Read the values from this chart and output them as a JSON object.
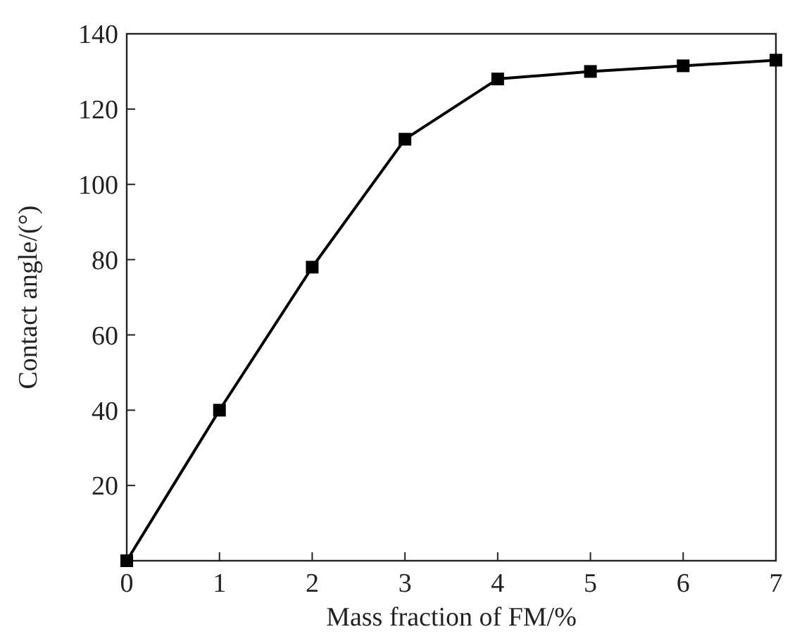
{
  "chart_data": {
    "type": "line",
    "xlabel": "Mass fraction of FM/%",
    "ylabel": "Contact angle/(°)",
    "x": [
      0,
      1,
      2,
      3,
      4,
      5,
      6,
      7
    ],
    "series": [
      {
        "color": "#000000",
        "values": [
          0,
          40,
          78,
          112,
          128,
          130,
          131.5,
          133
        ]
      }
    ],
    "xlim": [
      0,
      7
    ],
    "xticks": [
      0,
      1,
      2,
      3,
      4,
      5,
      6,
      7
    ],
    "ylim": [
      0,
      140
    ],
    "yticks": [
      20,
      40,
      60,
      80,
      100,
      120,
      140
    ],
    "marker": "square",
    "line_style": "solid"
  }
}
